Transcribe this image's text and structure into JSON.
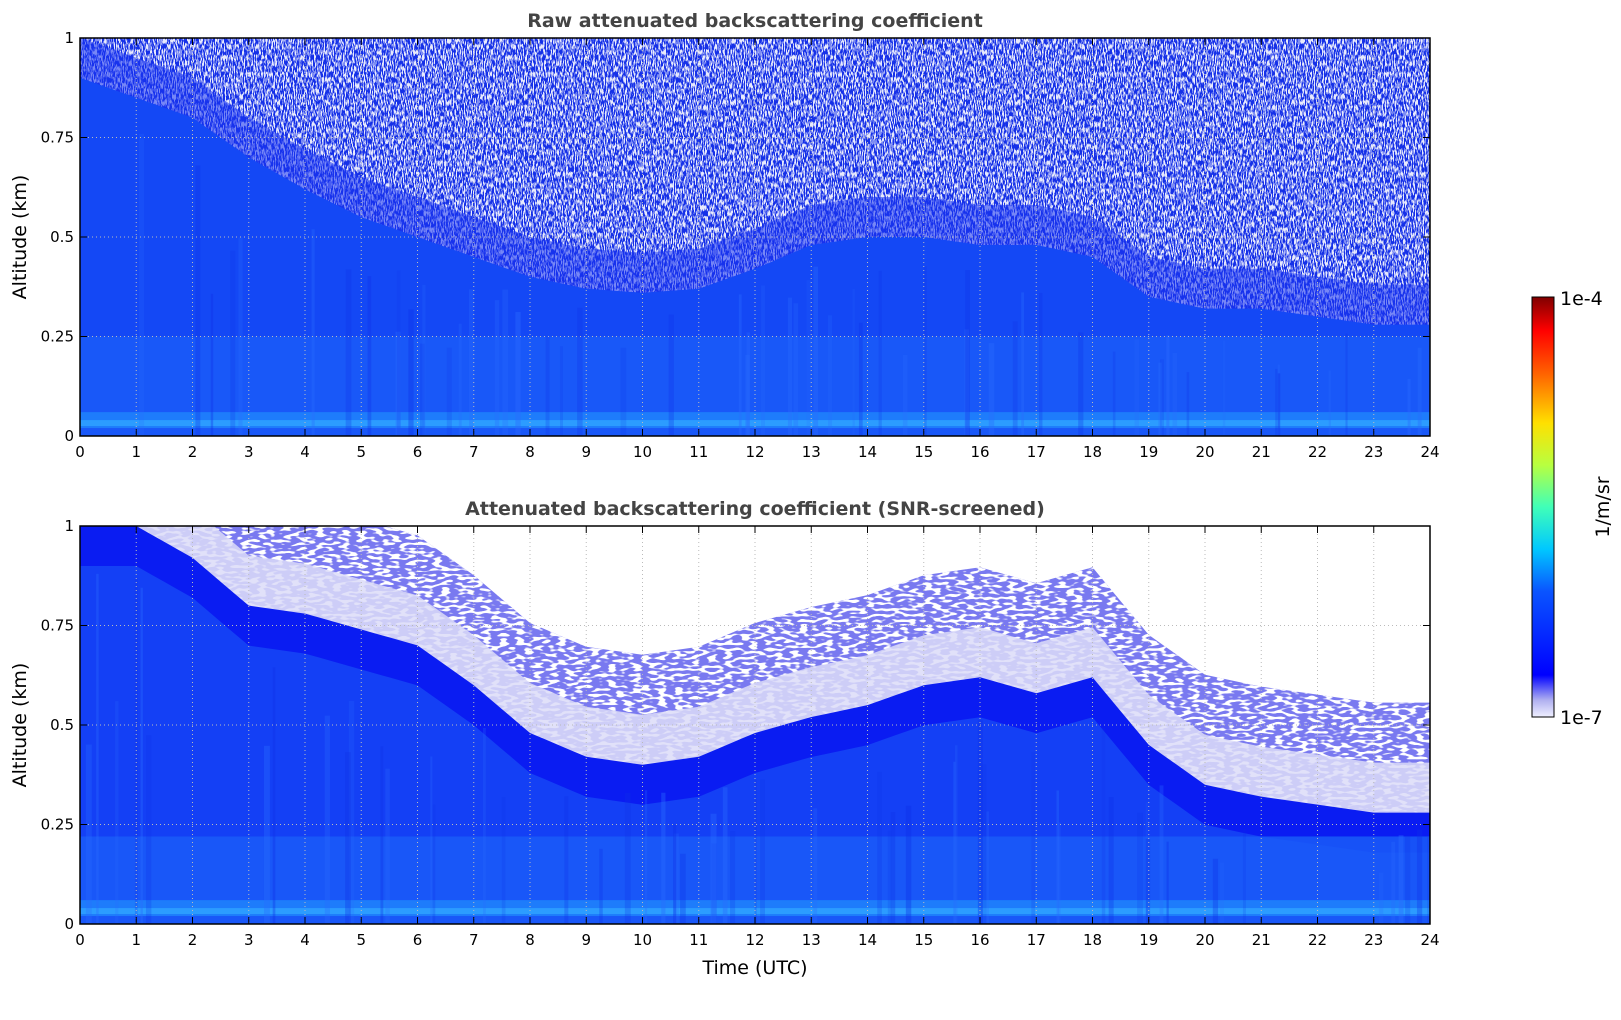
{
  "chart_data": [
    {
      "type": "heatmap",
      "title": "Raw attenuated backscattering coefficient",
      "xlabel": "",
      "ylabel": "Altitude (km)",
      "xlim": [
        0,
        24
      ],
      "ylim": [
        0,
        1
      ],
      "x_ticks": [
        "0",
        "1",
        "2",
        "3",
        "4",
        "5",
        "6",
        "7",
        "8",
        "9",
        "10",
        "11",
        "12",
        "13",
        "14",
        "15",
        "16",
        "17",
        "18",
        "19",
        "20",
        "21",
        "22",
        "23",
        "24"
      ],
      "y_ticks": [
        "0",
        "0.25",
        "0.5",
        "0.75",
        "1"
      ],
      "grid": true,
      "z_unit": "1/m/sr",
      "colorscale": "jet (log)",
      "signal_top_km": {
        "x": [
          0,
          1,
          2,
          3,
          4,
          5,
          6,
          7,
          8,
          9,
          10,
          11,
          12,
          13,
          14,
          15,
          16,
          17,
          18,
          19,
          20,
          21,
          22,
          23,
          24
        ],
        "y": [
          0.9,
          0.85,
          0.8,
          0.7,
          0.62,
          0.55,
          0.5,
          0.45,
          0.4,
          0.37,
          0.36,
          0.37,
          0.42,
          0.48,
          0.5,
          0.5,
          0.48,
          0.48,
          0.45,
          0.35,
          0.32,
          0.32,
          0.3,
          0.28,
          0.28
        ]
      }
    },
    {
      "type": "heatmap",
      "title": "Attenuated backscattering coefficient (SNR-screened)",
      "xlabel": "Time (UTC)",
      "ylabel": "Altitude (km)",
      "xlim": [
        0,
        24
      ],
      "ylim": [
        0,
        1
      ],
      "x_ticks": [
        "0",
        "1",
        "2",
        "3",
        "4",
        "5",
        "6",
        "7",
        "8",
        "9",
        "10",
        "11",
        "12",
        "13",
        "14",
        "15",
        "16",
        "17",
        "18",
        "19",
        "20",
        "21",
        "22",
        "23",
        "24"
      ],
      "y_ticks": [
        "0",
        "0.25",
        "0.5",
        "0.75",
        "1"
      ],
      "grid": true,
      "z_unit": "1/m/sr",
      "colorscale": "jet (log)",
      "boundary_layer_top_km": {
        "x": [
          0,
          1,
          2,
          3,
          4,
          5,
          6,
          7,
          8,
          9,
          10,
          11,
          12,
          13,
          14,
          15,
          16,
          17,
          18,
          19,
          20,
          21,
          22,
          23,
          24
        ],
        "y": [
          1.0,
          1.0,
          0.92,
          0.8,
          0.78,
          0.74,
          0.7,
          0.6,
          0.48,
          0.42,
          0.4,
          0.42,
          0.48,
          0.52,
          0.55,
          0.6,
          0.62,
          0.58,
          0.62,
          0.45,
          0.35,
          0.32,
          0.3,
          0.28,
          0.28
        ]
      }
    }
  ],
  "colorbar": {
    "label": "1/m/sr",
    "max_label": "1e-4",
    "min_label": "1e-7",
    "scale": "log",
    "range": [
      1e-07,
      0.0001
    ]
  }
}
